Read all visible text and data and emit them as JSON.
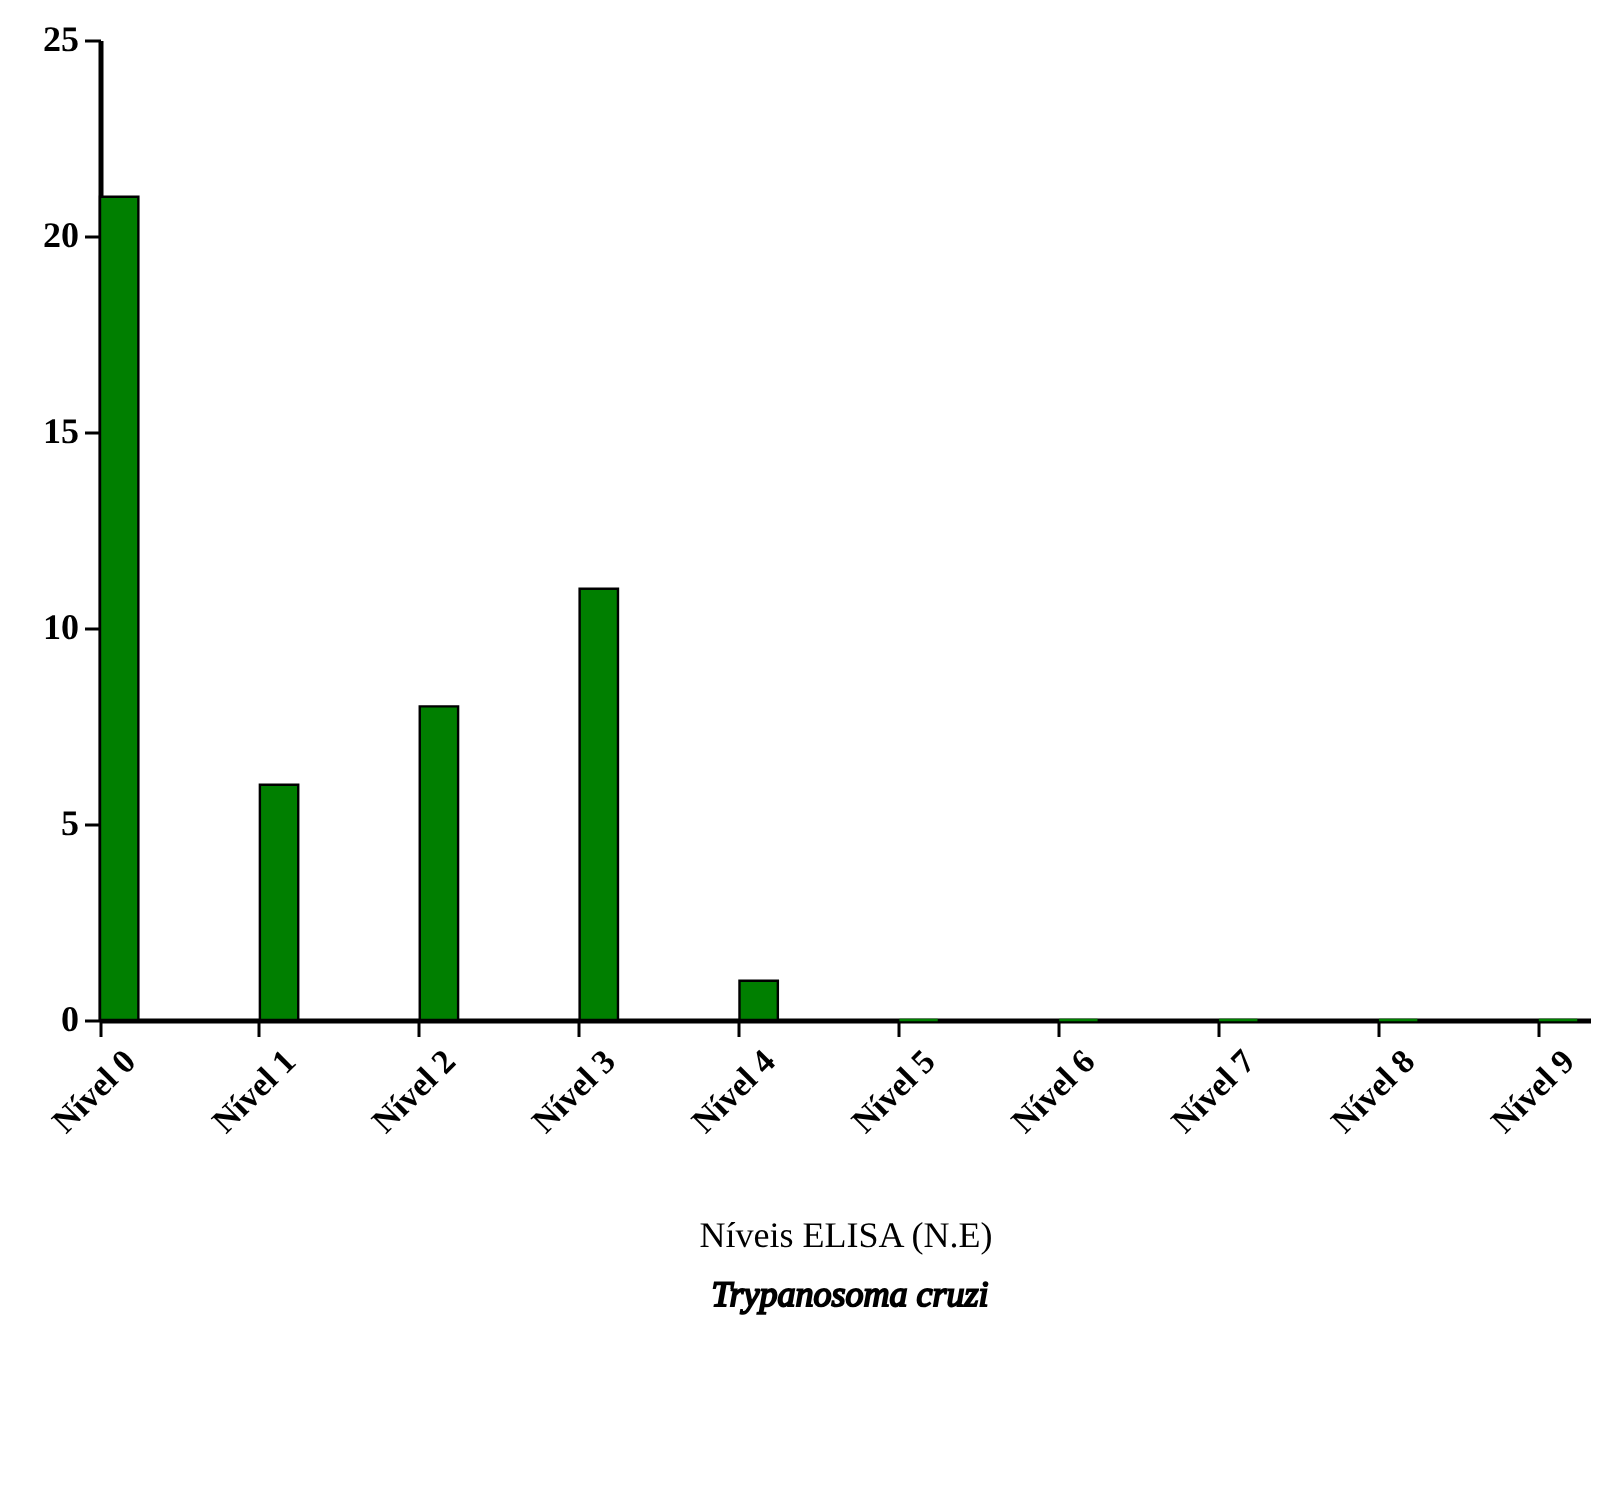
{
  "chart_data": {
    "type": "bar",
    "categories": [
      "Nível 0",
      "Nível 1",
      "Nível 2",
      "Nível 3",
      "Nível 4",
      "Nível 5",
      "Nível 6",
      "Nível 7",
      "Nível 8",
      "Nível 9"
    ],
    "values": [
      21,
      6,
      8,
      11,
      1,
      0,
      0,
      0,
      0,
      0
    ],
    "color": "#007f00",
    "ylim": [
      0,
      25
    ],
    "yticks": [
      0,
      5,
      10,
      15,
      20,
      25
    ],
    "xlabel": "Níveis ELISA (N.E)",
    "annotations": [
      "Trypanosoma cruzi"
    ],
    "grid": false
  }
}
